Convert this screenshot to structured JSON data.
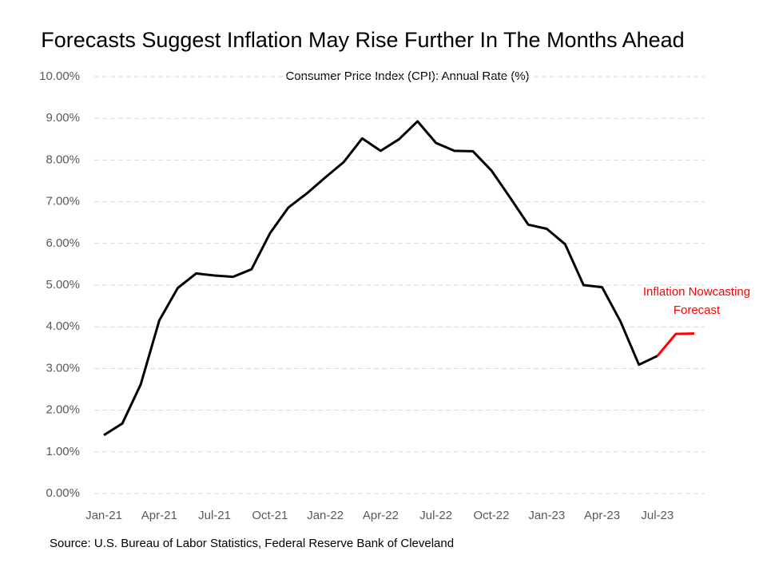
{
  "chart_data": {
    "type": "line",
    "title": "Forecasts Suggest Inflation May Rise Further In The Months Ahead",
    "subtitle": "Consumer Price Index (CPI): Annual Rate (%)",
    "annotation": [
      "Inflation Nowcasting",
      "Forecast"
    ],
    "source": "Source: U.S. Bureau of Labor Statistics, Federal Reserve Bank of Cleveland",
    "categories": [
      "Jan-21",
      null,
      null,
      "Apr-21",
      null,
      null,
      "Jul-21",
      null,
      null,
      "Oct-21",
      null,
      null,
      "Jan-22",
      null,
      null,
      "Apr-22",
      null,
      null,
      "Jul-22",
      null,
      null,
      "Oct-22",
      null,
      null,
      "Jan-23",
      null,
      null,
      "Apr-23",
      null,
      null,
      "Jul-23",
      null,
      null
    ],
    "series": [
      {
        "name": "CPI",
        "color": "#000000",
        "values": [
          1.4,
          1.68,
          2.62,
          4.15,
          4.93,
          5.28,
          5.23,
          5.2,
          5.38,
          6.24,
          6.86,
          7.2,
          7.58,
          7.95,
          8.52,
          8.22,
          8.5,
          8.93,
          8.41,
          8.22,
          8.21,
          7.75,
          7.11,
          6.45,
          6.35,
          5.98,
          5.0,
          4.95,
          4.13,
          3.09,
          3.3,
          null,
          null
        ]
      },
      {
        "name": "Inflation Nowcasting Forecast",
        "color": "#ff0000",
        "values": [
          null,
          null,
          null,
          null,
          null,
          null,
          null,
          null,
          null,
          null,
          null,
          null,
          null,
          null,
          null,
          null,
          null,
          null,
          null,
          null,
          null,
          null,
          null,
          null,
          null,
          null,
          null,
          null,
          null,
          null,
          3.3,
          3.83,
          3.84
        ]
      }
    ],
    "ylim": [
      0,
      10
    ],
    "yticks": [
      {
        "value": 0,
        "label": "0.00%"
      },
      {
        "value": 1,
        "label": "1.00%"
      },
      {
        "value": 2,
        "label": "2.00%"
      },
      {
        "value": 3,
        "label": "3.00%"
      },
      {
        "value": 4,
        "label": "4.00%"
      },
      {
        "value": 5,
        "label": "5.00%"
      },
      {
        "value": 6,
        "label": "6.00%"
      },
      {
        "value": 7,
        "label": "7.00%"
      },
      {
        "value": 8,
        "label": "8.00%"
      },
      {
        "value": 9,
        "label": "9.00%"
      },
      {
        "value": 10,
        "label": "10.00%"
      }
    ],
    "grid": true
  }
}
